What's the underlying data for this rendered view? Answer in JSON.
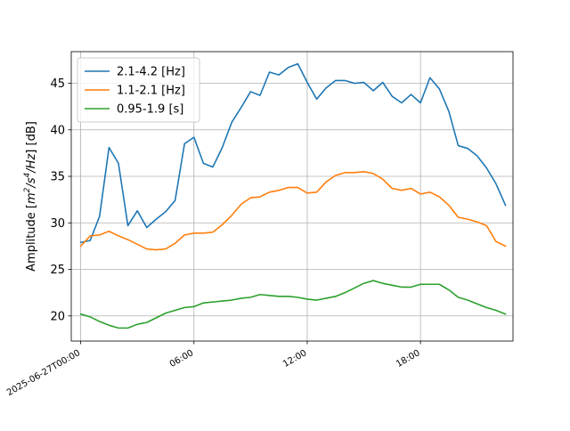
{
  "chart_data": {
    "type": "line",
    "xlabel": "",
    "ylabel_parts": [
      "Amplitude [",
      "m",
      "2",
      "/",
      "s",
      "4",
      "/",
      "Hz",
      "] [dB]"
    ],
    "xlim": [
      -0.5,
      22.9
    ],
    "ylim": [
      17.3,
      48.4
    ],
    "grid": true,
    "legend_position": "upper-left",
    "x_ticks": [
      {
        "value": 0,
        "label": "2025-06-27T00:00"
      },
      {
        "value": 6,
        "label": "06:00"
      },
      {
        "value": 12,
        "label": "12:00"
      },
      {
        "value": 18,
        "label": "18:00"
      }
    ],
    "y_ticks": [
      {
        "value": 20,
        "label": "20"
      },
      {
        "value": 25,
        "label": "25"
      },
      {
        "value": 30,
        "label": "30"
      },
      {
        "value": 35,
        "label": "35"
      },
      {
        "value": 40,
        "label": "40"
      },
      {
        "value": 45,
        "label": "45"
      }
    ],
    "x": [
      0,
      0.5,
      1,
      1.5,
      2,
      2.5,
      3,
      3.5,
      4,
      4.5,
      5,
      5.5,
      6,
      6.5,
      7,
      7.5,
      8,
      8.5,
      9,
      9.5,
      10,
      10.5,
      11,
      11.5,
      12,
      12.5,
      13,
      13.5,
      14,
      14.5,
      15,
      15.5,
      16,
      16.5,
      17,
      17.5,
      18,
      18.5,
      19,
      19.5,
      20,
      20.5,
      21,
      21.5,
      22,
      22.5
    ],
    "series": [
      {
        "name": "2.1-4.2 [Hz]",
        "color": "#1f77b4",
        "values": [
          27.9,
          28.1,
          30.7,
          38.1,
          36.4,
          29.7,
          31.3,
          29.5,
          30.4,
          31.2,
          32.4,
          38.5,
          39.2,
          36.4,
          36.0,
          38.1,
          40.8,
          42.4,
          44.1,
          43.7,
          46.2,
          45.9,
          46.7,
          47.1,
          45.1,
          43.3,
          44.5,
          45.3,
          45.3,
          45.0,
          45.1,
          44.2,
          45.1,
          43.6,
          42.9,
          43.8,
          42.9,
          45.6,
          44.4,
          42.0,
          38.3,
          38.0,
          37.2,
          35.9,
          34.2,
          31.9
        ]
      },
      {
        "name": "1.1-2.1 [Hz]",
        "color": "#ff7f0e",
        "values": [
          27.5,
          28.6,
          28.7,
          29.1,
          28.6,
          28.2,
          27.7,
          27.2,
          27.1,
          27.2,
          27.8,
          28.7,
          28.9,
          28.9,
          29.0,
          29.8,
          30.8,
          32.0,
          32.7,
          32.8,
          33.3,
          33.5,
          33.8,
          33.8,
          33.2,
          33.3,
          34.4,
          35.1,
          35.4,
          35.4,
          35.5,
          35.3,
          34.7,
          33.7,
          33.5,
          33.7,
          33.1,
          33.3,
          32.8,
          31.9,
          30.6,
          30.4,
          30.1,
          29.7,
          28.0,
          27.5
        ]
      },
      {
        "name": "0.95-1.9 [s]",
        "color": "#2ca02c",
        "values": [
          20.2,
          19.9,
          19.4,
          19.0,
          18.7,
          18.7,
          19.1,
          19.3,
          19.8,
          20.3,
          20.6,
          20.9,
          21.0,
          21.4,
          21.5,
          21.6,
          21.7,
          21.9,
          22.0,
          22.3,
          22.2,
          22.1,
          22.1,
          22.0,
          21.8,
          21.7,
          21.9,
          22.1,
          22.5,
          23.0,
          23.5,
          23.8,
          23.5,
          23.3,
          23.1,
          23.1,
          23.4,
          23.4,
          23.4,
          22.8,
          22.0,
          21.7,
          21.3,
          20.9,
          20.6,
          20.2
        ]
      }
    ]
  }
}
